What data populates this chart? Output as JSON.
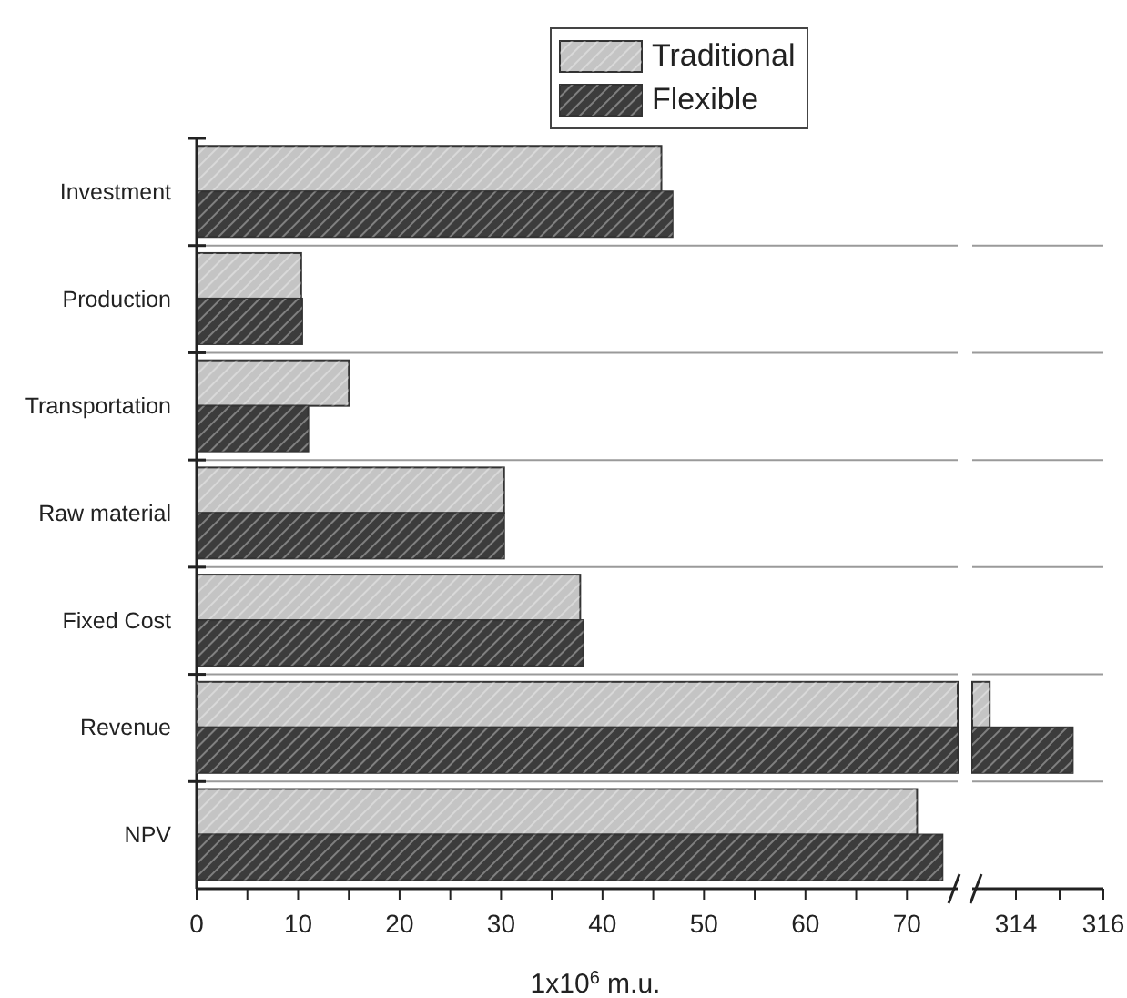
{
  "chart_data": [
    {
      "type": "bar",
      "orientation": "horizontal",
      "xlabel": "1x10$^{6}$ m.u.",
      "categories": [
        "Investment",
        "Production",
        "Transportation",
        "Raw material",
        "Fixed Cost",
        "Revenue",
        "NPV"
      ],
      "series": [
        {
          "name": "Traditional",
          "color": "#c4c4c4",
          "values": [
            45.8,
            10.3,
            15.0,
            30.3,
            37.8,
            null,
            71.0
          ]
        },
        {
          "name": "Flexible",
          "color": "#3c3c3c",
          "values": [
            46.9,
            10.4,
            11.0,
            30.3,
            38.1,
            null,
            73.5
          ]
        }
      ],
      "xlim": [
        0,
        75
      ],
      "xticks": [
        0,
        {
          "value": 5,
          "label": null
        },
        10,
        {
          "value": 15,
          "label": null
        },
        20,
        {
          "value": 25,
          "label": null
        },
        30,
        {
          "value": 35,
          "label": null
        },
        40,
        {
          "value": 45,
          "label": null
        },
        50,
        {
          "value": 55,
          "label": null
        },
        60,
        {
          "value": 65,
          "label": null
        },
        70
      ],
      "grid": "y",
      "legend": "top"
    },
    {
      "type": "bar",
      "orientation": "horizontal",
      "categories": [
        null,
        null,
        null,
        null,
        null,
        null,
        null
      ],
      "series": [
        {
          "color": "#c4c4c4",
          "values": [
            null,
            null,
            null,
            null,
            null,
            313.4,
            null
          ]
        },
        {
          "color": "#3c3c3c",
          "values": [
            null,
            null,
            null,
            null,
            null,
            315.3,
            null
          ]
        }
      ],
      "xlim": [
        313,
        316
      ],
      "xticks": [
        314,
        {
          "value": 315,
          "label": null
        },
        316
      ],
      "grid": "y",
      "tick_labels": "x"
    }
  ]
}
